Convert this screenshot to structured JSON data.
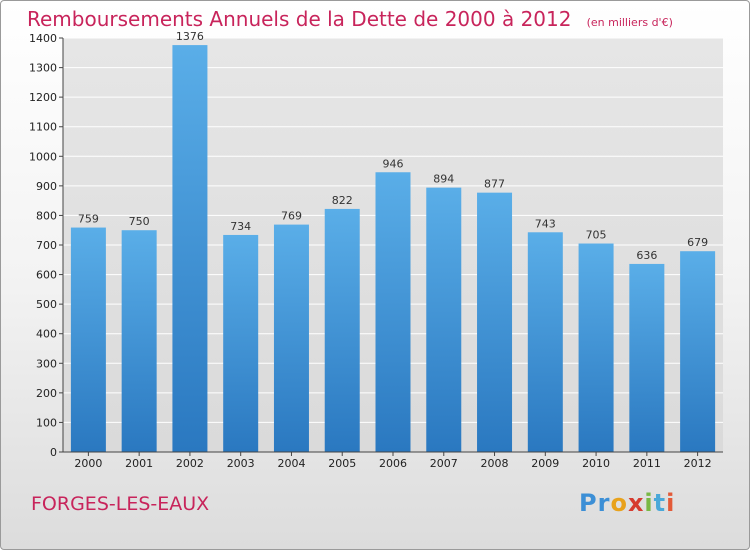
{
  "chart_data": {
    "type": "bar",
    "title": "Remboursements Annuels de la Dette de 2000 à 2012",
    "subtitle": "(en milliers d'€)",
    "categories": [
      "2000",
      "2001",
      "2002",
      "2003",
      "2004",
      "2005",
      "2006",
      "2007",
      "2008",
      "2009",
      "2010",
      "2011",
      "2012"
    ],
    "values": [
      759,
      750,
      1376,
      734,
      769,
      822,
      946,
      894,
      877,
      743,
      705,
      636,
      679
    ],
    "ylim": [
      0,
      1400
    ],
    "yticks": [
      0,
      100,
      200,
      300,
      400,
      500,
      600,
      700,
      800,
      900,
      1000,
      1100,
      1200,
      1300,
      1400
    ],
    "grid": true,
    "bar_color": "#3c8fd6"
  },
  "footer": {
    "place_name": "FORGES-LES-EAUX",
    "logo_letters": [
      "P",
      "r",
      "o",
      "x",
      "i",
      "t",
      "i"
    ]
  },
  "colors": {
    "title": "#c8245b",
    "bar_light": "#5aaee8",
    "bar_dark": "#2a78c0"
  }
}
